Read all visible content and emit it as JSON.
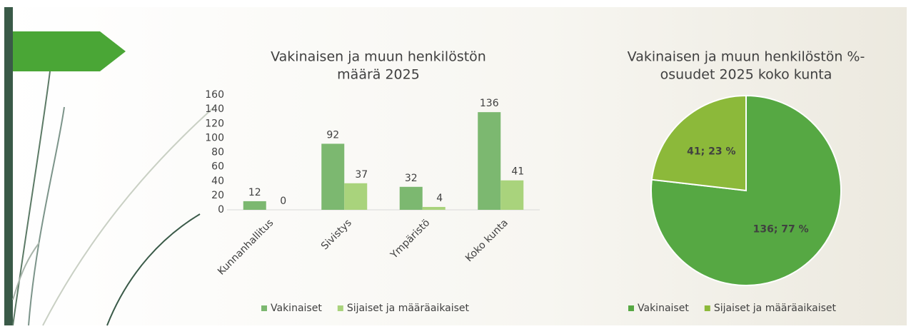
{
  "chart_data": [
    {
      "type": "bar",
      "title": [
        "Vakinaisen ja muun henkilöstön",
        "määrä 2025"
      ],
      "categories": [
        "Kunnanhallitus",
        "Sivistys",
        "Ympäristö",
        "Koko kunta"
      ],
      "series": [
        {
          "name": "Vakinaiset",
          "color": "#7cb870",
          "values": [
            12,
            92,
            32,
            136
          ]
        },
        {
          "name": "Sijaiset ja määräaikaiset",
          "color": "#a9d37c",
          "values": [
            0,
            37,
            4,
            41
          ]
        }
      ],
      "ylim": [
        0,
        160
      ],
      "yticks": [
        0,
        20,
        40,
        60,
        80,
        100,
        120,
        140,
        160
      ],
      "grid": false,
      "legend": "bottom"
    },
    {
      "type": "pie",
      "title": [
        "Vakinaisen ja muun henkilöstön %-",
        "osuudet 2025 koko kunta"
      ],
      "categories": [
        "Vakinaiset",
        "Sijaiset ja määräaikaiset"
      ],
      "values": [
        136,
        41
      ],
      "value_labels": [
        "136; 77 %",
        "41; 23 %"
      ],
      "colors": [
        "#56a843",
        "#8cb93a"
      ],
      "legend": "bottom"
    }
  ]
}
